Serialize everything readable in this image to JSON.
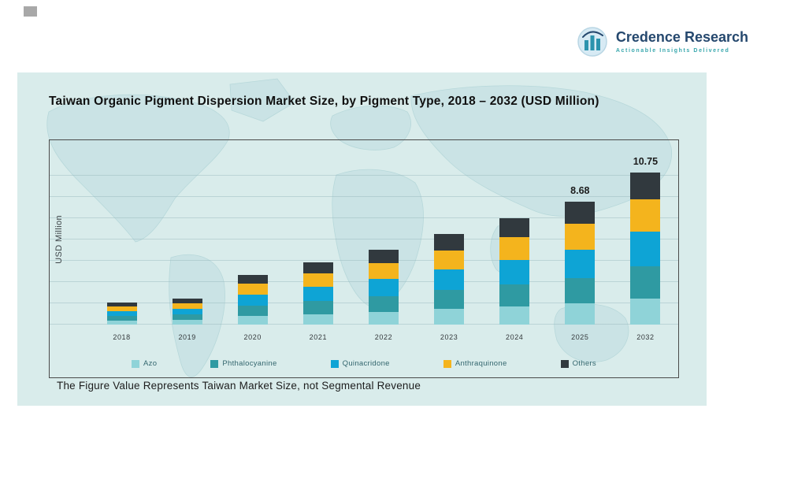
{
  "logo": {
    "name": "Credence Research",
    "tagline": "Actionable Insights Delivered",
    "icon": "bar-chart-in-circle-icon"
  },
  "panel": {
    "title": "Taiwan Organic Pigment Dispersion Market Size, by Pigment Type, 2018 – 2032 (USD Million)",
    "footnote": "The Figure Value Represents Taiwan Market Size, not Segmental Revenue"
  },
  "colors": {
    "panel_bg": "#d9eceb",
    "map_watermark": "#c9e3e5",
    "logo_navy": "#25486e",
    "accent_teal": "#38a7ad"
  },
  "chart_data": {
    "type": "bar",
    "stacked": true,
    "title": "Taiwan Organic Pigment Dispersion Market Size, by Pigment Type, 2018 – 2032 (USD Million)",
    "xlabel": "",
    "ylabel": "USD Million",
    "ylim": [
      0,
      12
    ],
    "grid": true,
    "legend_position": "bottom",
    "categories": [
      "2018",
      "2019",
      "2020",
      "2021",
      "2022",
      "2023",
      "2024",
      "2025",
      "2032"
    ],
    "series": [
      {
        "name": "Azo",
        "color": "#8fd3d8",
        "values": [
          0.28,
          0.33,
          0.6,
          0.75,
          0.9,
          1.09,
          1.28,
          1.48,
          1.83
        ]
      },
      {
        "name": "Phthalocyanine",
        "color": "#2f9aa2",
        "values": [
          0.33,
          0.39,
          0.74,
          0.92,
          1.11,
          1.34,
          1.57,
          1.82,
          2.26
        ]
      },
      {
        "name": "Quinacridone",
        "color": "#0ea4d5",
        "values": [
          0.35,
          0.42,
          0.8,
          1.01,
          1.22,
          1.47,
          1.72,
          2.0,
          2.47
        ]
      },
      {
        "name": "Anthraquinone",
        "color": "#f4b41d",
        "values": [
          0.32,
          0.39,
          0.73,
          0.92,
          1.11,
          1.34,
          1.57,
          1.82,
          2.26
        ]
      },
      {
        "name": "Others",
        "color": "#31393e",
        "values": [
          0.27,
          0.32,
          0.63,
          0.8,
          0.96,
          1.16,
          1.36,
          1.56,
          1.93
        ]
      }
    ],
    "totals_estimated": [
      1.55,
      1.85,
      3.5,
      4.4,
      5.3,
      6.4,
      7.5,
      8.68,
      10.75
    ],
    "bar_labels": [
      "",
      "",
      "",
      "",
      "",
      "",
      "",
      "8.68",
      "10.75"
    ]
  }
}
